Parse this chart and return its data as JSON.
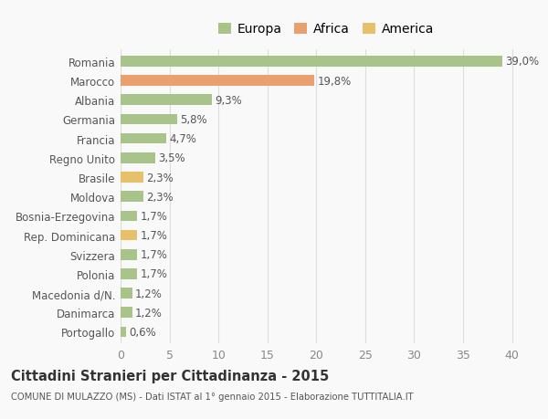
{
  "categories": [
    "Portogallo",
    "Danimarca",
    "Macedonia d/N.",
    "Polonia",
    "Svizzera",
    "Rep. Dominicana",
    "Bosnia-Erzegovina",
    "Moldova",
    "Brasile",
    "Regno Unito",
    "Francia",
    "Germania",
    "Albania",
    "Marocco",
    "Romania"
  ],
  "values": [
    0.6,
    1.2,
    1.2,
    1.7,
    1.7,
    1.7,
    1.7,
    2.3,
    2.3,
    3.5,
    4.7,
    5.8,
    9.3,
    19.8,
    39.0
  ],
  "colors": [
    "#a8c48a",
    "#a8c48a",
    "#a8c48a",
    "#a8c48a",
    "#a8c48a",
    "#e8c06a",
    "#a8c48a",
    "#a8c48a",
    "#e8c06a",
    "#a8c48a",
    "#a8c48a",
    "#a8c48a",
    "#a8c48a",
    "#e8a070",
    "#a8c48a"
  ],
  "labels": [
    "0,6%",
    "1,2%",
    "1,2%",
    "1,7%",
    "1,7%",
    "1,7%",
    "1,7%",
    "2,3%",
    "2,3%",
    "3,5%",
    "4,7%",
    "5,8%",
    "9,3%",
    "19,8%",
    "39,0%"
  ],
  "legend": [
    {
      "label": "Europa",
      "color": "#a8c48a"
    },
    {
      "label": "Africa",
      "color": "#e8a070"
    },
    {
      "label": "America",
      "color": "#e8c06a"
    }
  ],
  "xlim": [
    0,
    42
  ],
  "xticks": [
    0,
    5,
    10,
    15,
    20,
    25,
    30,
    35,
    40
  ],
  "title": "Cittadini Stranieri per Cittadinanza - 2015",
  "subtitle": "COMUNE DI MULAZZO (MS) - Dati ISTAT al 1° gennaio 2015 - Elaborazione TUTTITALIA.IT",
  "background_color": "#f9f9f9",
  "grid_color": "#dddddd",
  "bar_height": 0.55,
  "label_fontsize": 8.5,
  "ytick_fontsize": 8.5,
  "xtick_fontsize": 9
}
